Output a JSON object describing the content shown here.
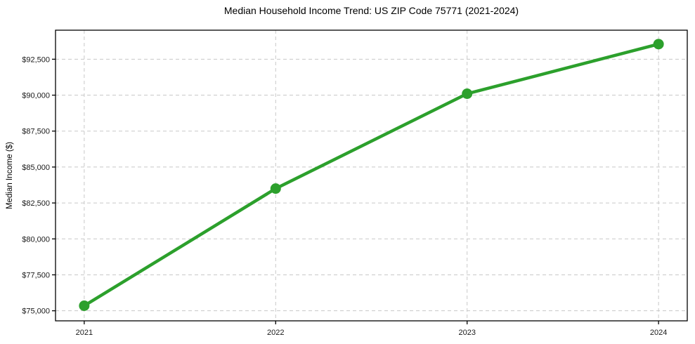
{
  "window": {
    "background": "#ffffff"
  },
  "chart_data": {
    "type": "line",
    "title": "Median Household Income Trend: US ZIP Code 75771 (2021-2024)",
    "xlabel": "",
    "ylabel": "Median Income ($)",
    "x": [
      2021,
      2022,
      2023,
      2024
    ],
    "xtick_labels": [
      "2021",
      "2022",
      "2023",
      "2024"
    ],
    "series": [
      {
        "name": "Median household income",
        "values": [
          75350,
          83500,
          90100,
          93550
        ]
      }
    ],
    "yticks": [
      75000,
      77500,
      80000,
      82500,
      85000,
      87500,
      90000,
      92500
    ],
    "ytick_labels": [
      "$75,000",
      "$77,500",
      "$80,000",
      "$82,500",
      "$85,000",
      "$87,500",
      "$90,000",
      "$92,500"
    ],
    "xlim": [
      2020.85,
      2024.15
    ],
    "ylim": [
      74300,
      94520
    ],
    "grid": true,
    "grid_style": "dashed",
    "legend_position": "none",
    "marker": "circle",
    "colors": {
      "line": "#2ca02c",
      "marker": "#2ca02c",
      "grid": "#c8c8c8",
      "axis": "#000000",
      "tick_text": "#1a1a1a",
      "background": "#ffffff"
    }
  }
}
